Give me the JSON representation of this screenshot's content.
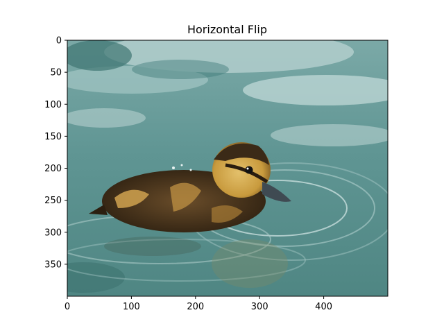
{
  "chart_data": {
    "type": "image",
    "title": "Horizontal Flip",
    "xlabel": "",
    "ylabel": "",
    "xlim": [
      0,
      500
    ],
    "ylim": [
      400,
      0
    ],
    "x_ticks": [
      0,
      100,
      200,
      300,
      400
    ],
    "y_ticks": [
      0,
      50,
      100,
      150,
      200,
      250,
      300,
      350
    ],
    "image_subject": "duckling",
    "colors": {
      "water_light": "#a9c9c8",
      "water_mid": "#6f9e9c",
      "water_dark": "#2f6b68",
      "duck_dark": "#3b2a17",
      "duck_yellow": "#d7b25b",
      "beak": "#3f4a52"
    }
  }
}
